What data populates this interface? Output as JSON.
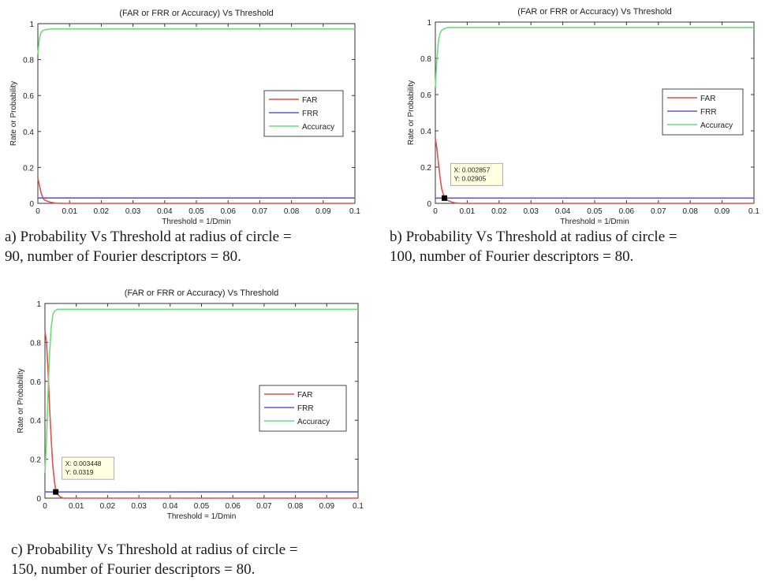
{
  "colors": {
    "far": "#d9534f",
    "frr": "#5b5bd6",
    "accuracy": "#6fdc7a",
    "datatip_bg": "#ffffe1"
  },
  "chart_data": [
    {
      "type": "line",
      "title": "(FAR or FRR or Accuracy) Vs Threshold",
      "xlabel": "Threshold = 1/Dmin",
      "ylabel": "Rate or Probability",
      "xlim": [
        0,
        0.1
      ],
      "ylim": [
        0,
        1
      ],
      "xticks": [
        "0",
        "0.01",
        "0.02",
        "0.03",
        "0.04",
        "0.05",
        "0.06",
        "0.07",
        "0.08",
        "0.09",
        "0.1"
      ],
      "yticks": [
        "0",
        "0.2",
        "0.4",
        "0.6",
        "0.8",
        "1"
      ],
      "grid": false,
      "legend": "center-right",
      "series": [
        {
          "name": "FAR",
          "x": [
            0,
            0.0005,
            0.001,
            0.0015,
            0.002,
            0.003,
            0.004,
            0.005,
            0.006,
            0.008,
            0.1
          ],
          "y": [
            0.14,
            0.1,
            0.06,
            0.035,
            0.02,
            0.012,
            0.006,
            0.003,
            0.001,
            0,
            0
          ]
        },
        {
          "name": "FRR",
          "x": [
            0,
            0.004,
            0.1
          ],
          "y": [
            0.03,
            0.03,
            0.03
          ]
        },
        {
          "name": "Accuracy",
          "x": [
            0,
            0.0005,
            0.001,
            0.0015,
            0.002,
            0.003,
            0.004,
            0.1
          ],
          "y": [
            0.83,
            0.92,
            0.95,
            0.96,
            0.965,
            0.968,
            0.97,
            0.97
          ]
        }
      ],
      "datatip": null,
      "caption": [
        "a) Probability Vs Threshold at radius of circle =",
        "90, number of Fourier descriptors = 80."
      ]
    },
    {
      "type": "line",
      "title": "(FAR or FRR or Accuracy) Vs Threshold",
      "xlabel": "Threshold = 1/Dmin",
      "ylabel": "Rate or Probability",
      "xlim": [
        0,
        0.1
      ],
      "ylim": [
        0,
        1
      ],
      "xticks": [
        "0",
        "0.01",
        "0.02",
        "0.03",
        "0.04",
        "0.05",
        "0.06",
        "0.07",
        "0.08",
        "0.09",
        "0.1"
      ],
      "yticks": [
        "0",
        "0.2",
        "0.4",
        "0.6",
        "0.8",
        "1"
      ],
      "grid": false,
      "legend": "center-right",
      "series": [
        {
          "name": "FAR",
          "x": [
            0,
            0.0005,
            0.001,
            0.0015,
            0.002,
            0.002857,
            0.004,
            0.005,
            0.006,
            0.008,
            0.1
          ],
          "y": [
            0.36,
            0.3,
            0.22,
            0.14,
            0.08,
            0.03,
            0.015,
            0.008,
            0.003,
            0,
            0
          ]
        },
        {
          "name": "FRR",
          "x": [
            0,
            0.002857,
            0.1
          ],
          "y": [
            0.029,
            0.02905,
            0.029
          ]
        },
        {
          "name": "Accuracy",
          "x": [
            0,
            0.0005,
            0.001,
            0.0015,
            0.002,
            0.003,
            0.004,
            0.1
          ],
          "y": [
            0.64,
            0.8,
            0.9,
            0.94,
            0.955,
            0.965,
            0.97,
            0.97
          ]
        }
      ],
      "datatip": {
        "x": 0.002857,
        "y": 0.02905,
        "lines": [
          "X: 0.002857",
          "Y: 0.02905"
        ]
      },
      "caption": [
        "b) Probability Vs Threshold at radius of circle =",
        "100, number of Fourier descriptors = 80."
      ]
    },
    {
      "type": "line",
      "title": "(FAR or FRR or Accuracy) Vs Threshold",
      "xlabel": "Threshold = 1/Dmin",
      "ylabel": "Rate or Probability",
      "xlim": [
        0,
        0.1
      ],
      "ylim": [
        0,
        1
      ],
      "xticks": [
        "0",
        "0.01",
        "0.02",
        "0.03",
        "0.04",
        "0.05",
        "0.06",
        "0.07",
        "0.08",
        "0.09",
        "0.1"
      ],
      "yticks": [
        "0",
        "0.2",
        "0.4",
        "0.6",
        "0.8",
        "1"
      ],
      "grid": false,
      "legend": "center-right",
      "series": [
        {
          "name": "FAR",
          "x": [
            0,
            0.0005,
            0.001,
            0.0015,
            0.002,
            0.0025,
            0.003,
            0.003448,
            0.004,
            0.005,
            0.006,
            0.1
          ],
          "y": [
            0.86,
            0.8,
            0.65,
            0.46,
            0.3,
            0.17,
            0.09,
            0.04,
            0.02,
            0.005,
            0,
            0
          ]
        },
        {
          "name": "FRR",
          "x": [
            0,
            0.003448,
            0.1
          ],
          "y": [
            0.032,
            0.0319,
            0.032
          ]
        },
        {
          "name": "Accuracy",
          "x": [
            0,
            0.0005,
            0.001,
            0.0015,
            0.002,
            0.0025,
            0.003,
            0.004,
            0.1
          ],
          "y": [
            0.13,
            0.3,
            0.55,
            0.75,
            0.88,
            0.94,
            0.96,
            0.97,
            0.97
          ]
        }
      ],
      "datatip": {
        "x": 0.003448,
        "y": 0.0319,
        "lines": [
          "X: 0.003448",
          "Y: 0.0319"
        ]
      },
      "caption": [
        "c) Probability Vs Threshold at radius of circle =",
        "150, number of Fourier descriptors = 80."
      ]
    }
  ]
}
